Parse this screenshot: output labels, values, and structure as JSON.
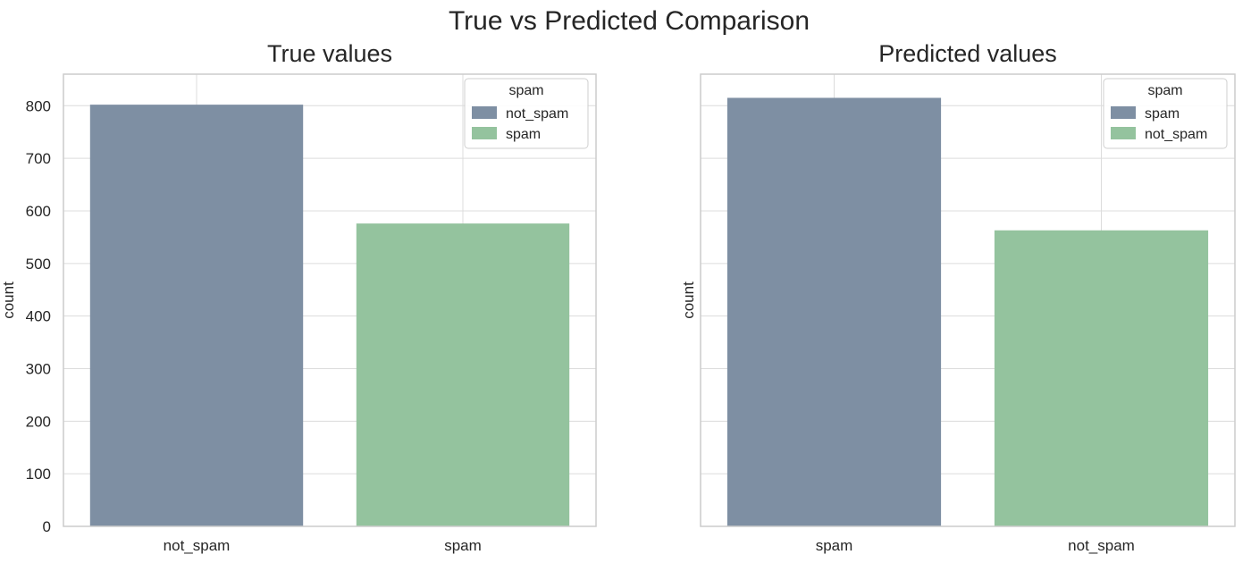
{
  "figure": {
    "suptitle": "True vs Predicted Comparison"
  },
  "colors": {
    "series_1": "#7e8fa3",
    "series_2": "#94c39e",
    "grid": "#dcdcdc",
    "spine": "#cccccc"
  },
  "chart_data": [
    {
      "type": "bar",
      "title": "True values",
      "xlabel": "",
      "ylabel": "count",
      "ylim": [
        0,
        860
      ],
      "yticks": [
        0,
        100,
        200,
        300,
        400,
        500,
        600,
        700,
        800
      ],
      "categories": [
        "not_spam",
        "spam"
      ],
      "values": [
        802,
        576
      ],
      "bar_colors": [
        "#7e8fa3",
        "#94c39e"
      ],
      "legend": {
        "title": "spam",
        "position": "upper right",
        "entries": [
          {
            "label": "not_spam",
            "color": "#7e8fa3"
          },
          {
            "label": "spam",
            "color": "#94c39e"
          }
        ]
      },
      "grid": true
    },
    {
      "type": "bar",
      "title": "Predicted values",
      "xlabel": "",
      "ylabel": "count",
      "ylim": [
        0,
        860
      ],
      "yticks": [
        0,
        100,
        200,
        300,
        400,
        500,
        600,
        700,
        800
      ],
      "show_ytick_labels": false,
      "categories": [
        "spam",
        "not_spam"
      ],
      "values": [
        815,
        563
      ],
      "bar_colors": [
        "#7e8fa3",
        "#94c39e"
      ],
      "legend": {
        "title": "spam",
        "position": "upper right",
        "entries": [
          {
            "label": "spam",
            "color": "#7e8fa3"
          },
          {
            "label": "not_spam",
            "color": "#94c39e"
          }
        ]
      },
      "grid": true
    }
  ]
}
